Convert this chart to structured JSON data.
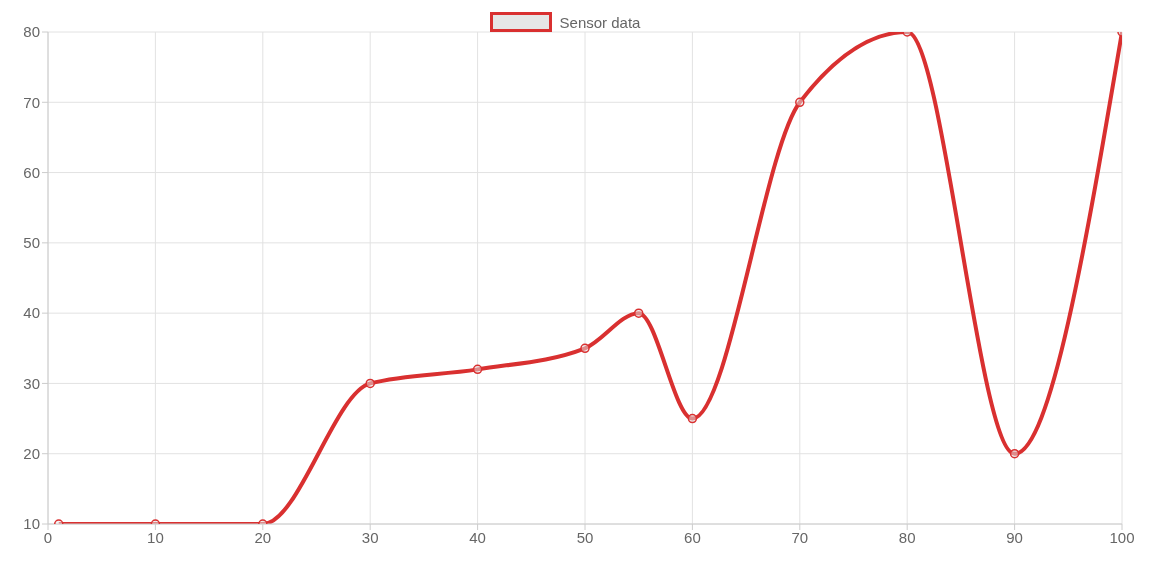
{
  "chart_data": {
    "type": "line",
    "x": [
      1,
      10,
      20,
      30,
      40,
      50,
      55,
      60,
      70,
      80,
      90,
      100
    ],
    "series": [
      {
        "name": "Sensor data",
        "color": "#d93030",
        "values": [
          10,
          10,
          10,
          30,
          32,
          35,
          40,
          25,
          70,
          80,
          20,
          80
        ]
      }
    ],
    "xlim": [
      0,
      100
    ],
    "xticks": [
      0,
      10,
      20,
      30,
      40,
      50,
      60,
      70,
      80,
      90,
      100
    ],
    "ylim": [
      10,
      80
    ],
    "yticks": [
      10,
      20,
      30,
      40,
      50,
      60,
      70,
      80
    ],
    "grid": true,
    "legend": "top",
    "marker": "circle",
    "line_style": "solid"
  }
}
